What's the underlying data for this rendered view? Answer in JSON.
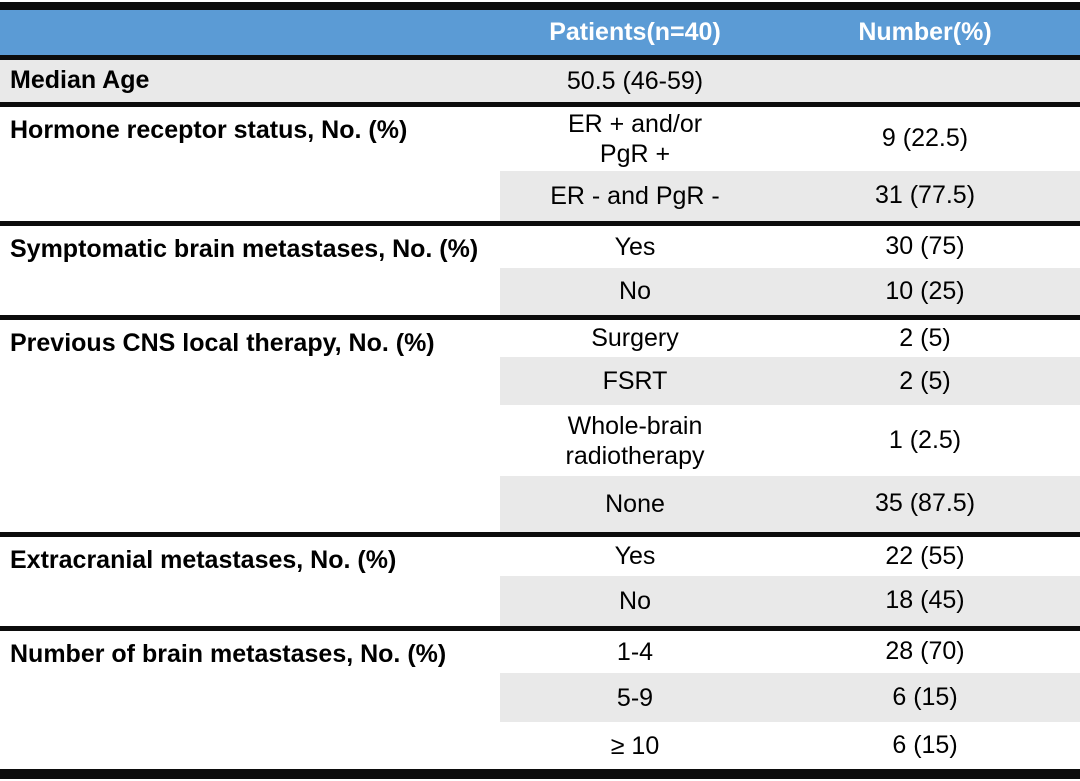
{
  "colors": {
    "header_bg": "#5b9bd5",
    "header_text": "#ffffff",
    "band_gray": "#e9e9e9",
    "rule_black": "#0c0c0c",
    "body_text": "#000000",
    "page_bg": "#ffffff"
  },
  "table": {
    "header": {
      "col1": "",
      "col2": "Patients(n=40)",
      "col3": "Number(%)"
    },
    "sections": [
      {
        "label": "Median Age",
        "rows": [
          {
            "category": "50.5 (46-59)",
            "value": ""
          }
        ]
      },
      {
        "label": "Hormone receptor status, No. (%)",
        "rows": [
          {
            "category": "ER + and/or\nPgR +",
            "value": "9 (22.5)"
          },
          {
            "category": "ER - and PgR -",
            "value": "31 (77.5)"
          }
        ]
      },
      {
        "label": "Symptomatic brain metastases, No. (%)",
        "rows": [
          {
            "category": "Yes",
            "value": "30 (75)"
          },
          {
            "category": "No",
            "value": "10 (25)"
          }
        ]
      },
      {
        "label": "Previous CNS local therapy, No. (%)",
        "rows": [
          {
            "category": "Surgery",
            "value": "2 (5)"
          },
          {
            "category": "FSRT",
            "value": "2 (5)"
          },
          {
            "category": "Whole-brain\nradiotherapy",
            "value": "1 (2.5)"
          },
          {
            "category": "None",
            "value": "35 (87.5)"
          }
        ]
      },
      {
        "label": "Extracranial metastases, No. (%)",
        "rows": [
          {
            "category": "Yes",
            "value": "22 (55)"
          },
          {
            "category": "No",
            "value": "18 (45)"
          }
        ]
      },
      {
        "label": "Number of brain metastases, No. (%)",
        "rows": [
          {
            "category": "1-4",
            "value": "28 (70)"
          },
          {
            "category": "5-9",
            "value": "6 (15)"
          },
          {
            "category": "≥ 10",
            "value": "6 (15)"
          }
        ]
      }
    ]
  }
}
